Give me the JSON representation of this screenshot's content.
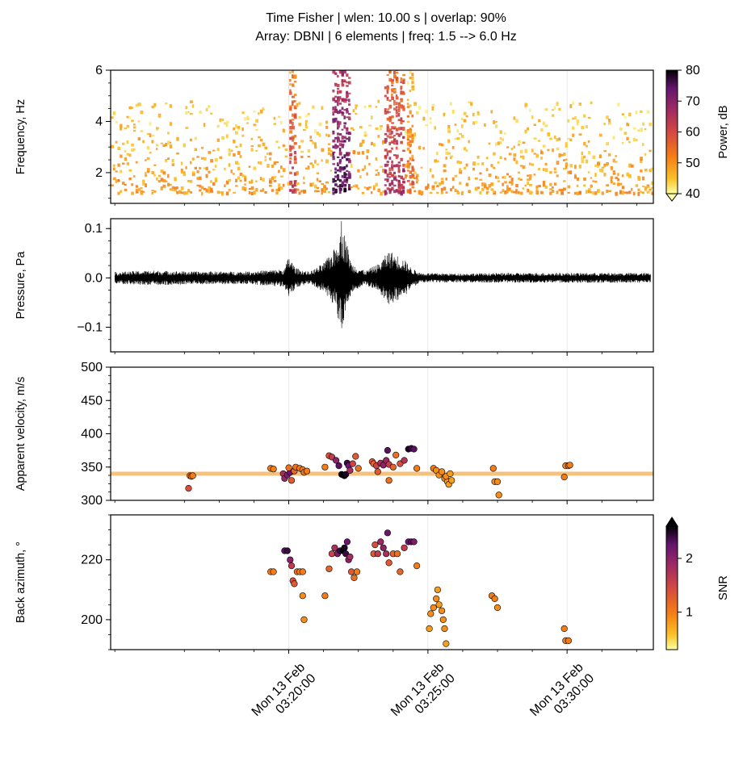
{
  "title_line1": "Time Fisher | wlen: 10.00 s | overlap: 90%",
  "title_line2": "Array: DBNI | 6 elements | freq: 1.5 --> 6.0 Hz",
  "x_axis": {
    "range_min": [
      -12.8,
      26.2
    ],
    "ticks": [
      {
        "t": 0,
        "line1": "Mon 13 Feb",
        "line2": "03:20:00"
      },
      {
        "t": 10,
        "line1": "Mon 13 Feb",
        "line2": "03:25:00"
      },
      {
        "t": 20,
        "line1": "Mon 13 Feb",
        "line2": "03:30:00"
      }
    ]
  },
  "colors": {
    "reference_line": "#f5c27e"
  },
  "chart_data": [
    {
      "type": "heatmap",
      "name": "spectrogram",
      "ylabel": "Frequency, Hz",
      "ylim": [
        0.8,
        6
      ],
      "yticks": [
        2,
        4,
        6
      ],
      "colorbar": {
        "label": "Power, dB",
        "range": [
          40,
          80
        ],
        "ticks": [
          40,
          50,
          60,
          70,
          80
        ],
        "extend": "min",
        "colormap": "inferno_r"
      },
      "energy_bursts": [
        {
          "start_min": 0.0,
          "end_min": 0.5,
          "power_db": 62
        },
        {
          "start_min": 3.1,
          "end_min": 4.4,
          "power_db": 75
        },
        {
          "start_min": 6.8,
          "end_min": 8.2,
          "power_db": 66
        },
        {
          "start_min": 8.4,
          "end_min": 8.9,
          "power_db": 56
        }
      ]
    },
    {
      "type": "line",
      "name": "waveform",
      "ylabel": "Pressure, Pa",
      "ylim": [
        -0.15,
        0.12
      ],
      "yticks": [
        0.1,
        0.0,
        -0.1
      ],
      "ytick_labels": [
        "0.1",
        "0.0",
        "−0.1"
      ],
      "envelope_min": [
        -12.5,
        26
      ],
      "envelope_pa": [
        [
          -12.5,
          0.012
        ],
        [
          -10,
          0.015
        ],
        [
          -7,
          0.013
        ],
        [
          -3,
          0.013
        ],
        [
          -0.3,
          0.018
        ],
        [
          0,
          0.045
        ],
        [
          0.5,
          0.02
        ],
        [
          1.5,
          0.012
        ],
        [
          2.5,
          0.03
        ],
        [
          3.3,
          0.06
        ],
        [
          3.8,
          0.11
        ],
        [
          4.1,
          0.08
        ],
        [
          4.5,
          0.03
        ],
        [
          5.5,
          0.014
        ],
        [
          6.5,
          0.03
        ],
        [
          7.2,
          0.055
        ],
        [
          7.6,
          0.05
        ],
        [
          8.4,
          0.035
        ],
        [
          8.8,
          0.02
        ],
        [
          9.5,
          0.01
        ],
        [
          12,
          0.009
        ],
        [
          16,
          0.01
        ],
        [
          20,
          0.01
        ],
        [
          26,
          0.01
        ]
      ]
    },
    {
      "type": "scatter",
      "name": "apparent-velocity",
      "ylabel": "Apparent velocity, m/s",
      "ylim": [
        300,
        500
      ],
      "yticks": [
        300,
        350,
        400,
        450,
        500
      ],
      "reference_value": 340,
      "points": [
        [
          -7.1,
          337,
          1.0
        ],
        [
          -7.0,
          336,
          1.0
        ],
        [
          -6.9,
          337,
          1.0
        ],
        [
          -7.2,
          318,
          1.4
        ],
        [
          -1.3,
          348,
          1.0
        ],
        [
          -1.1,
          347,
          1.0
        ],
        [
          -0.4,
          340,
          1.8
        ],
        [
          -0.3,
          333,
          1.9
        ],
        [
          -0.1,
          338,
          2.1
        ],
        [
          0.1,
          342,
          2.2
        ],
        [
          0.2,
          330,
          1.3
        ],
        [
          0.4,
          344,
          1.2
        ],
        [
          0.5,
          350,
          1.1
        ],
        [
          0.8,
          348,
          1.0
        ],
        [
          1.0,
          346,
          1.0
        ],
        [
          1.1,
          342,
          1.1
        ],
        [
          1.3,
          344,
          1.0
        ],
        [
          2.6,
          350,
          1.0
        ],
        [
          2.9,
          367,
          1.4
        ],
        [
          3.1,
          365,
          1.6
        ],
        [
          3.4,
          360,
          2.0
        ],
        [
          3.6,
          352,
          2.3
        ],
        [
          3.8,
          339,
          2.6
        ],
        [
          3.9,
          338,
          2.7
        ],
        [
          4.0,
          337,
          2.6
        ],
        [
          4.1,
          339,
          2.5
        ],
        [
          4.2,
          356,
          2.4
        ],
        [
          4.3,
          352,
          2.2
        ],
        [
          4.4,
          345,
          1.8
        ],
        [
          4.6,
          355,
          1.5
        ],
        [
          4.8,
          366,
          1.3
        ],
        [
          5.0,
          348,
          1.1
        ],
        [
          6.0,
          358,
          1.3
        ],
        [
          6.1,
          355,
          1.2
        ],
        [
          6.3,
          352,
          1.5
        ],
        [
          6.6,
          356,
          1.8
        ],
        [
          6.8,
          353,
          2.0
        ],
        [
          7.0,
          360,
          1.9
        ],
        [
          7.1,
          375,
          2.3
        ],
        [
          7.2,
          354,
          1.6
        ],
        [
          7.5,
          350,
          1.2
        ],
        [
          7.7,
          368,
          1.1
        ],
        [
          8.0,
          355,
          1.4
        ],
        [
          8.3,
          360,
          1.7
        ],
        [
          8.6,
          377,
          2.5
        ],
        [
          8.8,
          378,
          2.4
        ],
        [
          9.0,
          377,
          2.3
        ],
        [
          9.2,
          348,
          1.0
        ],
        [
          7.2,
          330,
          1.1
        ],
        [
          10.4,
          348,
          1.0
        ],
        [
          10.6,
          345,
          0.9
        ],
        [
          10.8,
          338,
          0.9
        ],
        [
          11.0,
          343,
          0.9
        ],
        [
          11.2,
          333,
          0.9
        ],
        [
          11.4,
          328,
          0.8
        ],
        [
          11.5,
          324,
          0.8
        ],
        [
          11.7,
          330,
          0.8
        ],
        [
          11.3,
          336,
          0.9
        ],
        [
          14.7,
          348,
          1.0
        ],
        [
          14.8,
          328,
          0.9
        ],
        [
          15.0,
          328,
          0.9
        ],
        [
          15.1,
          308,
          0.9
        ],
        [
          19.8,
          335,
          1.0
        ],
        [
          19.9,
          352,
          1.0
        ],
        [
          20.1,
          352,
          1.0
        ],
        [
          20.2,
          353,
          1.0
        ],
        [
          11.6,
          340,
          0.8
        ],
        [
          0.0,
          349,
          1.1
        ],
        [
          6.4,
          343,
          1.3
        ]
      ]
    },
    {
      "type": "scatter",
      "name": "back-azimuth",
      "ylabel": "Back azimuth, °",
      "ylim": [
        190,
        235
      ],
      "yticks": [
        200,
        220
      ],
      "colorbar": {
        "label": "SNR",
        "range": [
          0.3,
          2.6
        ],
        "ticks": [
          1,
          2
        ],
        "extend": "max",
        "colormap": "inferno_r"
      },
      "points": [
        [
          -1.3,
          216,
          1.0
        ],
        [
          -1.1,
          216,
          1.0
        ],
        [
          -0.3,
          223,
          2.3
        ],
        [
          -0.1,
          223,
          2.4
        ],
        [
          0.1,
          220,
          2.0
        ],
        [
          0.2,
          218,
          1.6
        ],
        [
          0.3,
          213,
          1.4
        ],
        [
          0.4,
          212,
          1.3
        ],
        [
          0.6,
          216,
          1.1
        ],
        [
          0.8,
          216,
          1.0
        ],
        [
          1.0,
          216,
          1.0
        ],
        [
          1.0,
          208,
          0.9
        ],
        [
          1.1,
          200,
          0.9
        ],
        [
          2.6,
          208,
          1.0
        ],
        [
          2.9,
          217,
          1.2
        ],
        [
          3.1,
          222,
          1.5
        ],
        [
          3.3,
          224,
          1.8
        ],
        [
          3.5,
          222,
          2.1
        ],
        [
          3.7,
          223,
          2.4
        ],
        [
          3.9,
          223,
          2.6
        ],
        [
          4.0,
          224,
          2.5
        ],
        [
          4.1,
          222,
          2.4
        ],
        [
          4.2,
          226,
          2.2
        ],
        [
          4.3,
          220,
          2.0
        ],
        [
          4.4,
          221,
          1.8
        ],
        [
          4.5,
          216,
          1.3
        ],
        [
          4.7,
          214,
          1.1
        ],
        [
          4.9,
          216,
          1.0
        ],
        [
          6.1,
          222,
          1.3
        ],
        [
          6.2,
          225,
          1.4
        ],
        [
          6.4,
          222,
          1.6
        ],
        [
          6.6,
          226,
          1.9
        ],
        [
          6.8,
          224,
          2.0
        ],
        [
          7.0,
          222,
          1.8
        ],
        [
          7.1,
          229,
          2.2
        ],
        [
          7.2,
          219,
          1.3
        ],
        [
          7.5,
          222,
          1.2
        ],
        [
          7.8,
          222,
          1.1
        ],
        [
          8.0,
          216,
          1.2
        ],
        [
          8.3,
          224,
          1.6
        ],
        [
          8.6,
          226,
          2.2
        ],
        [
          8.8,
          226,
          2.3
        ],
        [
          9.0,
          226,
          2.1
        ],
        [
          9.2,
          218,
          1.0
        ],
        [
          10.2,
          202,
          0.9
        ],
        [
          10.4,
          204,
          0.9
        ],
        [
          10.6,
          207,
          0.9
        ],
        [
          10.7,
          210,
          0.8
        ],
        [
          10.8,
          205,
          0.8
        ],
        [
          11.0,
          203,
          0.9
        ],
        [
          11.1,
          200,
          0.9
        ],
        [
          11.2,
          197,
          0.9
        ],
        [
          11.3,
          192,
          0.8
        ],
        [
          10.1,
          197,
          0.8
        ],
        [
          14.6,
          208,
          1.0
        ],
        [
          14.8,
          207,
          1.0
        ],
        [
          15.0,
          204,
          0.9
        ],
        [
          19.8,
          197,
          1.0
        ],
        [
          19.9,
          193,
          1.0
        ],
        [
          20.1,
          193,
          1.0
        ]
      ]
    }
  ]
}
